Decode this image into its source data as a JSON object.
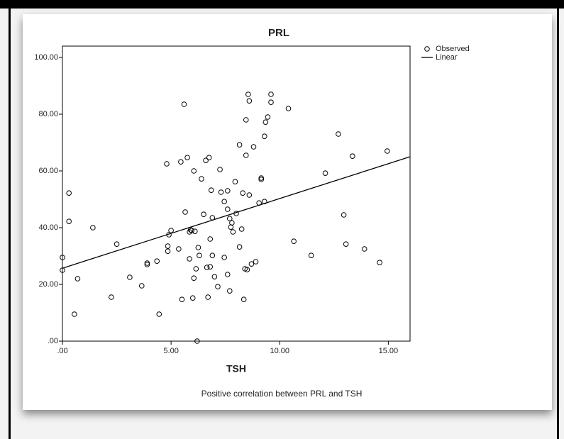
{
  "chart_data": {
    "type": "scatter",
    "title": "PRL",
    "xlabel": "TSH",
    "caption": "Positive correlation between PRL  and TSH",
    "xlim": [
      0,
      16
    ],
    "ylim": [
      0,
      104
    ],
    "xticks": [
      {
        "value": 0,
        "label": ".00"
      },
      {
        "value": 5,
        "label": "5.00"
      },
      {
        "value": 10,
        "label": "10.00"
      },
      {
        "value": 15,
        "label": "15.00"
      }
    ],
    "yticks": [
      {
        "value": 0,
        "label": ".00"
      },
      {
        "value": 20,
        "label": "20.00"
      },
      {
        "value": 40,
        "label": "40.00"
      },
      {
        "value": 60,
        "label": "60.00"
      },
      {
        "value": 80,
        "label": "80.00"
      },
      {
        "value": 100,
        "label": "100.00"
      }
    ],
    "legend": "right",
    "series": [
      {
        "name": "Observed",
        "color": "#000000",
        "marker": "circle",
        "x": [
          0,
          0,
          0.3,
          0.3,
          0.55,
          0.7,
          1.4,
          2.25,
          2.5,
          3.1,
          3.65,
          3.9,
          3.9,
          4.35,
          4.45,
          4.8,
          4.85,
          4.85,
          4.9,
          5.0,
          5.35,
          5.45,
          5.5,
          5.6,
          5.65,
          5.75,
          5.85,
          5.85,
          5.9,
          5.95,
          6.0,
          6.05,
          6.05,
          6.1,
          6.15,
          6.2,
          6.25,
          6.3,
          6.4,
          6.5,
          6.6,
          6.65,
          6.7,
          6.75,
          6.8,
          6.8,
          6.85,
          6.9,
          6.9,
          7.0,
          7.15,
          7.25,
          7.3,
          7.45,
          7.45,
          7.6,
          7.6,
          7.6,
          7.7,
          7.7,
          7.75,
          7.8,
          7.85,
          7.95,
          8.0,
          8.15,
          8.15,
          8.25,
          8.3,
          8.35,
          8.4,
          8.45,
          8.45,
          8.5,
          8.55,
          8.6,
          8.6,
          8.7,
          8.8,
          8.9,
          9.05,
          9.15,
          9.15,
          9.3,
          9.3,
          9.35,
          9.45,
          9.6,
          9.6,
          10.4,
          10.65,
          11.45,
          12.1,
          12.7,
          12.95,
          13.05,
          13.35,
          13.9,
          14.6,
          14.95
        ],
        "values": [
          29.5,
          25,
          52.2,
          42.2,
          9.5,
          22,
          40,
          15.5,
          34.2,
          22.5,
          19.5,
          27,
          27.5,
          28.2,
          9.5,
          62.5,
          33.5,
          31.7,
          37.5,
          39,
          32.5,
          63.2,
          14.7,
          83.5,
          45.5,
          64.7,
          29,
          38.5,
          39.2,
          39,
          15.2,
          60,
          22.2,
          38.7,
          25.5,
          0,
          33,
          30.2,
          57.2,
          44.7,
          63.7,
          26,
          15.5,
          64.7,
          26.2,
          36,
          53.2,
          30.2,
          43.5,
          22.7,
          19.2,
          60.5,
          52.5,
          29.5,
          49.2,
          53,
          23.5,
          46.5,
          43.2,
          17.7,
          40.2,
          41.7,
          38.5,
          56.2,
          45,
          69.2,
          33.2,
          39.5,
          52.2,
          14.7,
          25.5,
          65.5,
          78,
          25.2,
          87,
          84.7,
          51.5,
          27.2,
          68.5,
          28,
          48.7,
          57.5,
          57,
          49.2,
          72.2,
          77.2,
          79,
          87,
          84.2,
          82,
          35.2,
          30.2,
          59.2,
          73,
          44.5,
          34.2,
          65.2,
          32.5,
          27.7,
          67
        ]
      },
      {
        "name": "Linear",
        "color": "#000000",
        "marker": "line",
        "x": [
          0,
          16
        ],
        "values": [
          25.7,
          65
        ]
      }
    ]
  }
}
